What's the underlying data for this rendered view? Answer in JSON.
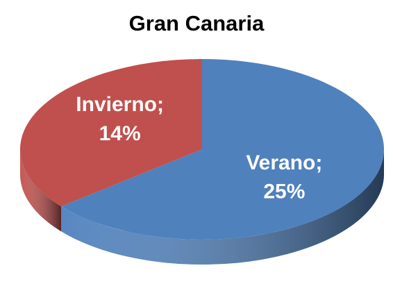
{
  "chart_data": {
    "type": "pie3d",
    "title": "Gran Canaria",
    "categories": [
      "Verano",
      "Invierno"
    ],
    "values": [
      25,
      14
    ],
    "value_labels": [
      "25%",
      "14%"
    ],
    "separator": ";",
    "colors": [
      "#4f81bd",
      "#c0504d"
    ]
  }
}
